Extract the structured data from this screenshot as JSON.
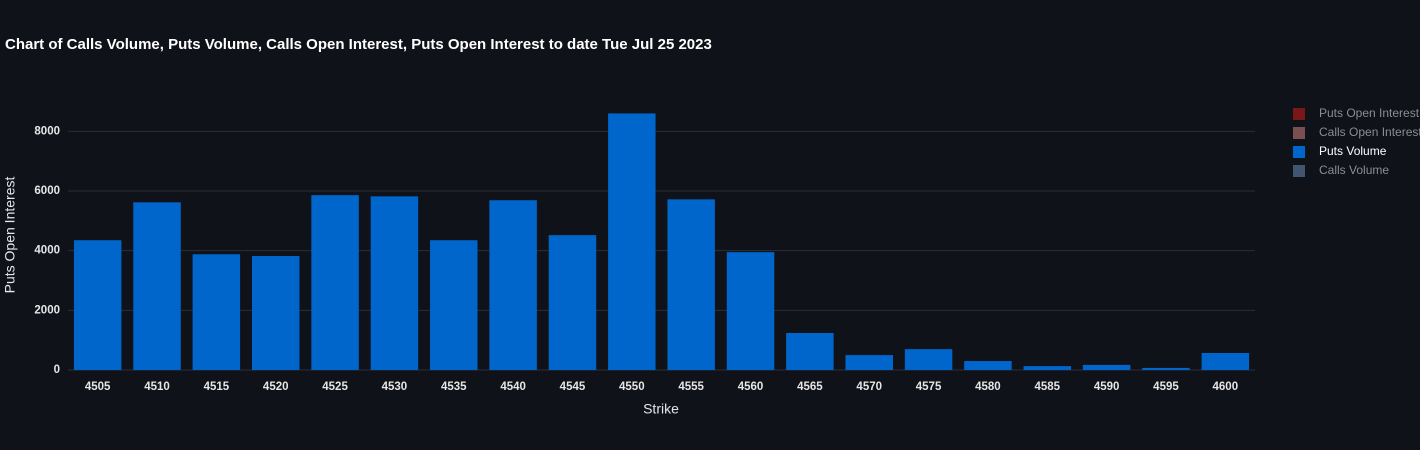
{
  "chart_data": {
    "type": "bar",
    "title": "Chart of Calls Volume, Puts Volume, Calls Open Interest, Puts Open Interest to date Tue Jul 25 2023",
    "x_label": "Strike",
    "y_label": "Puts Open Interest",
    "categories": [
      "4505",
      "4510",
      "4515",
      "4520",
      "4525",
      "4530",
      "4535",
      "4540",
      "4545",
      "4550",
      "4555",
      "4560",
      "4565",
      "4570",
      "4575",
      "4580",
      "4585",
      "4590",
      "4595",
      "4600"
    ],
    "series": [
      {
        "name": "Puts Open Interest",
        "color": "#8b1a1a",
        "visible": false
      },
      {
        "name": "Calls Open Interest",
        "color": "#8e5a5a",
        "visible": false
      },
      {
        "name": "Puts Volume",
        "color": "#0066cc",
        "visible": true,
        "values": [
          4350,
          5620,
          3880,
          3820,
          5860,
          5820,
          4350,
          5690,
          4520,
          8600,
          5720,
          3950,
          1240,
          500,
          700,
          300,
          130,
          170,
          70,
          570
        ]
      },
      {
        "name": "Calls Volume",
        "color": "#4a6280",
        "visible": false
      }
    ],
    "ylim": [
      0,
      9050
    ],
    "yticks": [
      0,
      2000,
      4000,
      6000,
      8000
    ],
    "grid": true,
    "legend": "right"
  }
}
